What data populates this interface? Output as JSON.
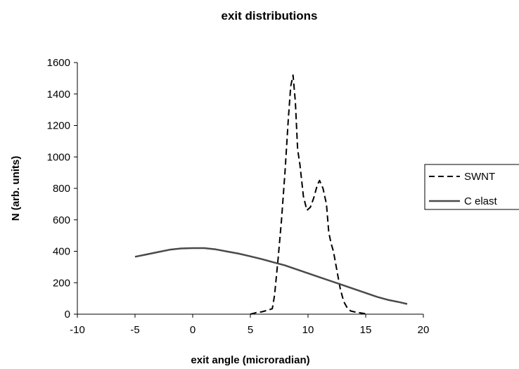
{
  "chart_data": {
    "type": "line",
    "title": "exit distributions",
    "xlabel": "exit angle (microradian)",
    "ylabel": "N (arb. units)",
    "xlim": [
      -10,
      20
    ],
    "ylim": [
      0,
      1600
    ],
    "xticks": [
      "-10",
      "-5",
      "0",
      "5",
      "10",
      "15",
      "20"
    ],
    "yticks": [
      "0",
      "200",
      "400",
      "600",
      "800",
      "1000",
      "1200",
      "1400",
      "1600"
    ],
    "grid": false,
    "legend_position": "right",
    "series": [
      {
        "name": "SWNT",
        "style": "dashed",
        "color": "#000000",
        "x": [
          5.0,
          5.5,
          6.0,
          6.5,
          6.9,
          7.1,
          7.4,
          7.7,
          8.0,
          8.3,
          8.5,
          8.7,
          8.9,
          9.1,
          9.3,
          9.6,
          9.9,
          10.2,
          10.5,
          10.8,
          11.0,
          11.3,
          11.6,
          11.8,
          12.0,
          12.2,
          12.5,
          12.8,
          13.1,
          13.4,
          13.7,
          14.0,
          14.4,
          14.8,
          15.2
        ],
        "y": [
          0,
          10,
          15,
          25,
          35,
          120,
          350,
          600,
          900,
          1250,
          1450,
          1520,
          1350,
          1050,
          950,
          750,
          660,
          680,
          740,
          820,
          850,
          800,
          700,
          520,
          450,
          400,
          280,
          160,
          80,
          40,
          20,
          15,
          10,
          5,
          0
        ]
      },
      {
        "name": "C elast",
        "style": "solid",
        "color": "#4a4a4a",
        "x": [
          -5,
          -4,
          -3,
          -2,
          -1,
          0,
          1,
          2,
          3,
          4,
          5,
          6,
          7,
          8,
          9,
          10,
          11,
          12,
          13,
          14,
          15,
          16,
          17,
          18,
          18.6
        ],
        "y": [
          365,
          380,
          395,
          410,
          418,
          420,
          420,
          412,
          398,
          385,
          368,
          350,
          330,
          310,
          285,
          260,
          235,
          210,
          185,
          160,
          135,
          110,
          90,
          75,
          65
        ]
      }
    ]
  }
}
